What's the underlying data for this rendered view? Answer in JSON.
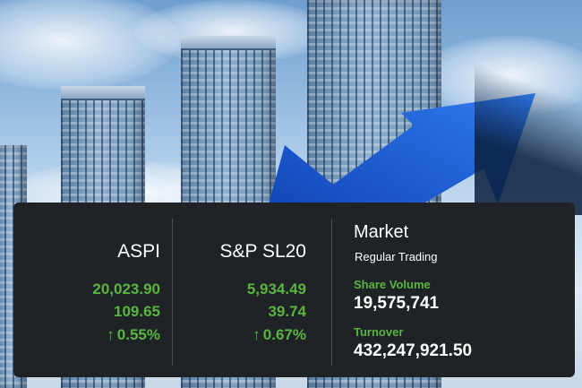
{
  "colors": {
    "panel_bg": "#1f2326",
    "positive_green": "#5ab440",
    "arrow_blue": "#1f5fd6",
    "text_white": "#ffffff"
  },
  "indices": [
    {
      "name": "ASPI",
      "value": "20,023.90",
      "change": "109.65",
      "change_pct": "0.55%",
      "direction_icon": "arrow-up-icon"
    },
    {
      "name": "S&P SL20",
      "value": "5,934.49",
      "change": "39.74",
      "change_pct": "0.67%",
      "direction_icon": "arrow-up-icon"
    }
  ],
  "market": {
    "title": "Market",
    "status": "Regular Trading",
    "share_volume_label": "Share Volume",
    "share_volume": "19,575,741",
    "turnover_label": "Turnover",
    "turnover": "432,247,921.50"
  }
}
